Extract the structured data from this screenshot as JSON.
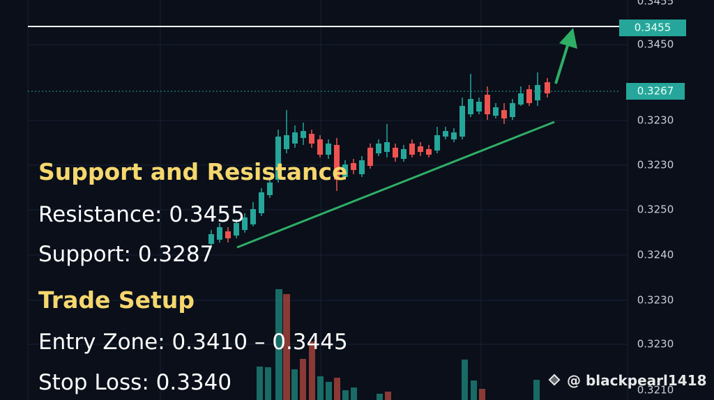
{
  "axis_labels": [
    "0.3455",
    "0.3450",
    "0.3230",
    "0.3230",
    "0.3250",
    "0.3240",
    "0.3230",
    "0.3230",
    "0.3210"
  ],
  "price_tags": {
    "resistance": "0.3455",
    "current": "0.3267"
  },
  "overlay": {
    "heading1": "Support and Resistance",
    "resistance": "Resistance: 0.3455",
    "support": "Support: 0.3287",
    "heading2": "Trade Setup",
    "entry": "Entry Zone: 0.3410 – 0.3445",
    "stop": "Stop Loss: 0.3340"
  },
  "watermark": "@ blackpearl1418"
}
